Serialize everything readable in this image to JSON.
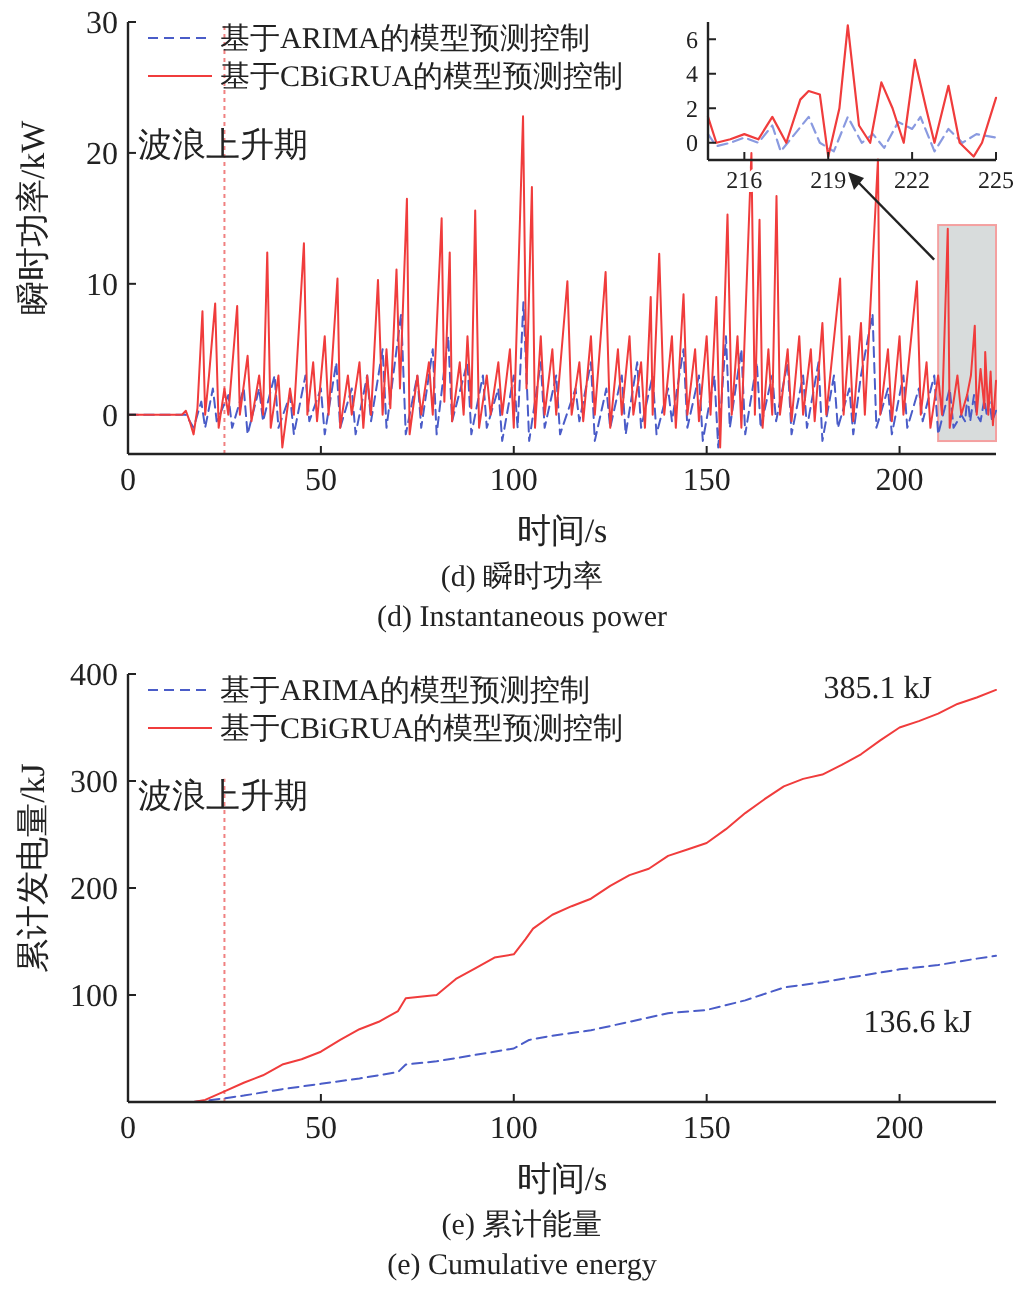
{
  "chart_data": [
    {
      "type": "line",
      "xlabel": "时间/s",
      "ylabel": "瞬时功率/kW",
      "xlim": [
        0,
        225
      ],
      "ylim": [
        -3,
        30
      ],
      "xticks": [
        0,
        50,
        100,
        150,
        200
      ],
      "yticks": [
        0,
        10,
        20,
        30
      ],
      "grid": false,
      "legend": "top left",
      "marker": "none",
      "annotations": [
        "(d) 瞬时功率",
        "(d) Instantaneous power"
      ],
      "ref_lines": [
        {
          "axis": "x",
          "value": 25,
          "label": "波浪上升期",
          "color": "#f08080",
          "line_style": "dotted"
        }
      ],
      "bands": [
        {
          "axis": "x",
          "from": 210,
          "to": 225,
          "color": "#d8dcdc"
        }
      ],
      "series": [
        {
          "name": "基于ARIMA的模型预测控制",
          "color": "#4a5cc8",
          "line_style": "dashed",
          "x": [
            0,
            15,
            17,
            19,
            20,
            22,
            23,
            26,
            27,
            30,
            31,
            34,
            35,
            38,
            39,
            42,
            43,
            46,
            47,
            50,
            51,
            54,
            55,
            58,
            59,
            62,
            63,
            66,
            67,
            70.8,
            72,
            75,
            76,
            79,
            80,
            83,
            84,
            88,
            89,
            92,
            93,
            96,
            97,
            100,
            101,
            102.5,
            104,
            107,
            108,
            111,
            112,
            116,
            117,
            120,
            121,
            124,
            125,
            128,
            129,
            132,
            133,
            136,
            137,
            140,
            141,
            144,
            145,
            148,
            149,
            152,
            153,
            155,
            156,
            159,
            160,
            163,
            164,
            167,
            168,
            171,
            172,
            175,
            176,
            179,
            180,
            183,
            184,
            187,
            188,
            190,
            193,
            194,
            197,
            198,
            201,
            202,
            205,
            206,
            209,
            210,
            213,
            214,
            216,
            217,
            217.6,
            218.3,
            219.3,
            220,
            221,
            222,
            222.6,
            223.3,
            224,
            225
          ],
          "values": [
            0,
            0,
            -1,
            1,
            -1,
            2,
            -0.5,
            1.5,
            -1,
            2,
            -1.5,
            2,
            -0.5,
            3,
            -1,
            1.5,
            -1.5,
            3,
            -0.5,
            2,
            -1.5,
            4,
            -1,
            2,
            -1.5,
            3,
            -0.5,
            5,
            -1,
            7.7,
            -1.5,
            3,
            -1,
            5,
            -1.5,
            6,
            -0.5,
            4,
            -1.5,
            3,
            -1,
            2,
            -2,
            3,
            -1,
            8.6,
            -2,
            4,
            -1,
            3,
            -1.5,
            2,
            -0.5,
            4,
            -2,
            2,
            -1,
            3,
            -1.5,
            4,
            -1,
            3,
            -1.5,
            2,
            -0.5,
            5,
            -1,
            3,
            -2,
            3,
            -2.5,
            6,
            -1,
            5,
            -1.5,
            4,
            -1,
            3,
            -0.5,
            4,
            -1.5,
            3,
            -1,
            4,
            -2,
            3,
            -1,
            2,
            -1.5,
            3,
            7.7,
            -1,
            2,
            -1.5,
            3,
            -1,
            2,
            -0.5,
            3,
            -1.5,
            2,
            -1,
            0,
            -0.5,
            1.5,
            -0.5,
            1.5,
            0,
            -0.5,
            1.2,
            0,
            1,
            -0.5,
            0.3
          ]
        },
        {
          "name": "基于CBiGRUA的模型预测控制",
          "color": "#f03c3c",
          "line_style": "solid",
          "x": [
            0,
            14,
            15,
            16,
            17,
            18,
            19.3,
            20,
            21,
            22.6,
            23.5,
            25,
            26,
            28.3,
            29,
            31,
            32,
            34,
            35,
            36.1,
            37,
            39,
            40,
            42,
            43,
            45.6,
            46.5,
            48,
            49,
            51,
            52,
            54.3,
            55,
            57,
            58,
            60,
            61,
            62,
            63,
            64.8,
            66,
            67,
            68,
            69.6,
            70.5,
            72.3,
            73,
            75,
            76,
            78,
            79,
            81.3,
            82,
            83.4,
            84,
            86,
            87,
            88,
            89,
            90,
            91,
            93,
            94,
            96,
            97,
            99,
            100,
            102.4,
            103.3,
            104.7,
            105.5,
            107,
            108,
            110,
            111,
            113.9,
            115,
            117,
            118,
            120,
            121,
            123.8,
            125,
            127,
            128,
            130,
            131,
            133,
            134,
            135.5,
            136,
            137.7,
            139,
            141,
            142,
            144,
            145,
            147,
            148,
            150,
            151,
            152.5,
            153.5,
            155.4,
            156.5,
            158,
            159,
            161.6,
            162.5,
            163.7,
            164.5,
            166,
            167,
            168.1,
            169,
            171,
            172,
            174,
            175,
            177,
            178,
            180,
            181,
            184.6,
            185.5,
            187,
            188,
            190,
            191,
            194.4,
            195,
            197,
            198,
            200,
            201,
            204.5,
            205.5,
            207,
            208,
            210,
            211,
            212.5,
            213,
            215,
            216,
            217.5,
            218.5,
            219.5,
            220,
            221,
            222,
            222.2,
            223,
            223.6,
            224.2,
            225
          ],
          "values": [
            0,
            0,
            0.3,
            -0.5,
            -1.5,
            0.5,
            7.9,
            0,
            3,
            8.5,
            -1,
            2,
            0,
            8.3,
            0,
            4.5,
            -0.5,
            3,
            0,
            12.4,
            -1,
            3,
            -2.5,
            2,
            0,
            13.1,
            0,
            4,
            -0.5,
            6,
            0,
            10.4,
            -1,
            3,
            0,
            4,
            -1,
            3,
            0,
            10.3,
            0,
            5,
            0.5,
            11.1,
            2,
            16.5,
            -1.5,
            3,
            0,
            4,
            0,
            15,
            1,
            12.4,
            -0.5,
            4,
            0,
            6,
            0.5,
            15.6,
            -1,
            3,
            0,
            4,
            0,
            5,
            -1,
            22.8,
            2,
            17.4,
            -1,
            6,
            0,
            5,
            0,
            10.2,
            0,
            4,
            -0.5,
            6,
            0,
            10.9,
            -1,
            5,
            0,
            6,
            0,
            4,
            -1,
            9,
            0,
            12.3,
            0,
            6,
            -1,
            9.2,
            0,
            5,
            -0.5,
            6,
            0,
            9,
            -2.5,
            15.3,
            0,
            6,
            -1,
            20,
            0,
            14.9,
            -1,
            5,
            0,
            16.7,
            0,
            5,
            -0.5,
            6,
            0,
            5,
            -0.5,
            7,
            0,
            10.4,
            0,
            6,
            -0.5,
            7,
            0,
            19.5,
            0,
            5,
            -0.5,
            6,
            0,
            10.2,
            0,
            4,
            -1,
            3,
            0,
            14.2,
            -1,
            3,
            0,
            1.5,
            3,
            6.8,
            0,
            3.5,
            0.5,
            4.8,
            0,
            3.3,
            -0.8,
            2.6
          ]
        }
      ]
    },
    {
      "type": "line",
      "xlim": [
        214.7,
        225
      ],
      "ylim": [
        -1,
        7
      ],
      "xticks": [
        216,
        219,
        222,
        225
      ],
      "yticks": [
        0,
        2,
        4,
        6
      ],
      "grid": false,
      "marker": "none",
      "series": [
        {
          "color": "#8a9ae0",
          "line_style": "dashed",
          "x": [
            214.7,
            215,
            215.5,
            216,
            216.5,
            217,
            217.3,
            217.8,
            218.3,
            218.7,
            219.2,
            219.7,
            220.2,
            220.6,
            221,
            221.5,
            222,
            222.3,
            222.8,
            223.3,
            223.8,
            224.3,
            225
          ],
          "values": [
            0.5,
            -0.2,
            0,
            0.3,
            0,
            1,
            -0.5,
            0.5,
            1.5,
            0,
            -0.5,
            1.5,
            0,
            0.5,
            -0.3,
            1.2,
            0.8,
            1.5,
            -0.5,
            0.8,
            0,
            0.5,
            0.3
          ]
        },
        {
          "color": "#f03c3c",
          "line_style": "solid",
          "x": [
            214.7,
            215,
            215.5,
            216,
            216.5,
            217,
            217.5,
            218,
            218.3,
            218.7,
            219,
            219.4,
            219.7,
            220.1,
            220.5,
            220.9,
            221.3,
            221.7,
            222.1,
            222.5,
            222.8,
            223.3,
            223.7,
            224.2,
            224.5,
            225
          ],
          "values": [
            1.5,
            0,
            0.2,
            0.5,
            0.2,
            1.5,
            0,
            2.5,
            3,
            2.8,
            -0.8,
            2,
            6.8,
            1,
            0,
            3.5,
            2,
            0,
            4.8,
            2,
            0,
            3.3,
            0,
            -0.8,
            0,
            2.6
          ]
        }
      ]
    },
    {
      "type": "line",
      "xlabel": "时间/s",
      "ylabel": "累计发电量/kJ",
      "xlim": [
        0,
        225
      ],
      "ylim": [
        0,
        400
      ],
      "xticks": [
        0,
        50,
        100,
        150,
        200
      ],
      "yticks": [
        {
          "value": 0,
          "label": null
        },
        100,
        200,
        300,
        400
      ],
      "grid": false,
      "legend": "top left",
      "marker": "none",
      "annotations": [
        {
          "text": "385.1 kJ",
          "x": 225,
          "y": 385.1
        },
        {
          "text": "136.6 kJ",
          "x": 225,
          "y": 136.6
        },
        "(e) 累计能量",
        "(e) Cumulative energy"
      ],
      "ref_lines": [
        {
          "axis": "x",
          "value": 25,
          "label": "波浪上升期",
          "color": "#f08080",
          "line_style": "dotted"
        }
      ],
      "series": [
        {
          "name": "基于ARIMA的模型预测控制",
          "color": "#4a5cc8",
          "line_style": "dashed",
          "x": [
            17,
            20,
            30,
            40,
            50,
            60,
            70,
            72,
            80,
            90,
            100,
            104,
            110,
            120,
            130,
            140,
            150,
            160,
            170,
            180,
            190,
            200,
            210,
            220,
            225
          ],
          "values": [
            0,
            1,
            6,
            12,
            17,
            22,
            28,
            35,
            38,
            44,
            50,
            58,
            62,
            67,
            75,
            83,
            86,
            95,
            107,
            112,
            118,
            124,
            128,
            134,
            136.6
          ]
        },
        {
          "name": "基于CBiGRUA的模型预测控制",
          "color": "#f03c3c",
          "line_style": "solid",
          "x": [
            17,
            20,
            25,
            30,
            35,
            40,
            45,
            50,
            55,
            60,
            65,
            70,
            72,
            80,
            85,
            90,
            95,
            100,
            103,
            105,
            110,
            115,
            120,
            125,
            130,
            135,
            140,
            145,
            150,
            155,
            160,
            165,
            170,
            175,
            180,
            185,
            190,
            195,
            200,
            205,
            210,
            215,
            220,
            225
          ],
          "values": [
            0,
            2,
            10,
            18,
            25,
            35,
            40,
            47,
            58,
            68,
            75,
            85,
            97,
            100,
            115,
            125,
            135,
            138,
            152,
            162,
            175,
            183,
            190,
            202,
            212,
            218,
            230,
            236,
            242,
            255,
            270,
            283,
            295,
            302,
            306,
            315,
            325,
            338,
            350,
            356,
            363,
            372,
            378,
            385.1
          ]
        }
      ]
    }
  ]
}
